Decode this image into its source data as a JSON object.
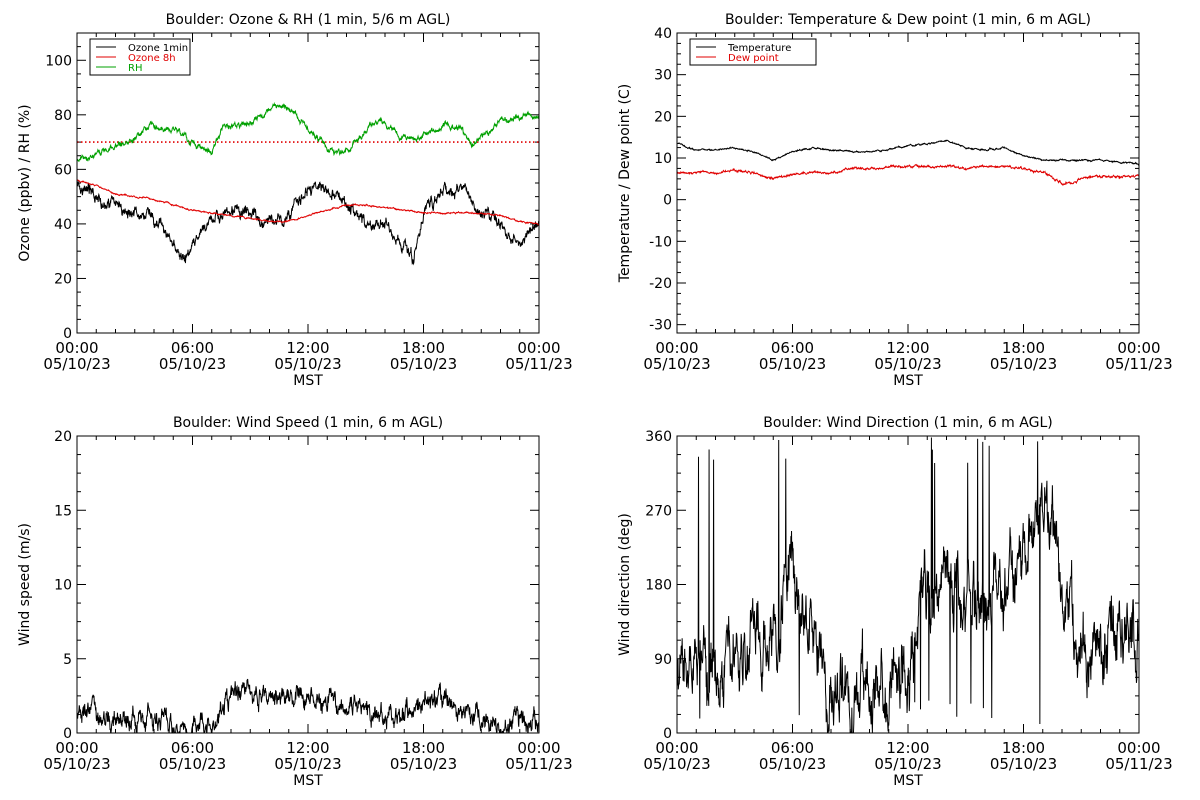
{
  "chart_data": [
    {
      "type": "line",
      "title": "Boulder: Ozone & RH (1 min, 5/6 m AGL)",
      "xlabel": "MST",
      "ylabel": "Ozone (ppbv) / RH (%)",
      "xlim_hours": [
        0,
        24
      ],
      "ylim": [
        0,
        110
      ],
      "yticks": [
        0,
        20,
        40,
        60,
        80,
        100
      ],
      "xtick_hours": [
        0,
        6,
        12,
        18,
        24
      ],
      "xtick_labels": [
        [
          "00:00",
          "05/10/23"
        ],
        [
          "06:00",
          "05/10/23"
        ],
        [
          "12:00",
          "05/10/23"
        ],
        [
          "18:00",
          "05/10/23"
        ],
        [
          "00:00",
          "05/11/23"
        ]
      ],
      "legend_position": "top-left",
      "reference_line": {
        "value": 70,
        "color": "#e00000",
        "style": "dotted"
      },
      "series": [
        {
          "name": "Ozone 1min",
          "color": "#000000",
          "noise": 2.5,
          "x": [
            0,
            1,
            2,
            3,
            4,
            5,
            5.5,
            6,
            6.5,
            7,
            8,
            9,
            10,
            11,
            12,
            13,
            14,
            15,
            16,
            17,
            17.5,
            18,
            19,
            20,
            21,
            22,
            23,
            24
          ],
          "y": [
            56,
            50,
            46,
            45,
            42,
            32,
            26,
            30,
            37,
            42,
            44,
            44,
            40,
            44,
            52,
            52,
            48,
            40,
            40,
            32,
            27,
            45,
            53,
            52,
            45,
            38,
            33,
            39
          ]
        },
        {
          "name": "Ozone 8h",
          "color": "#e00000",
          "noise": 0.3,
          "x": [
            0,
            1,
            2,
            3,
            4,
            5,
            6,
            7,
            8,
            9,
            10,
            11,
            12,
            13,
            14,
            15,
            16,
            17,
            18,
            19,
            20,
            21,
            22,
            23,
            24
          ],
          "y": [
            56,
            54,
            51,
            50,
            49,
            47,
            45,
            44,
            43,
            42,
            41,
            41,
            43,
            45,
            47,
            47,
            46,
            45,
            44,
            44,
            44,
            44,
            43,
            41,
            40
          ]
        },
        {
          "name": "RH",
          "color": "#00a000",
          "noise": 1.2,
          "x": [
            0,
            1,
            2,
            3,
            4,
            5,
            6,
            7,
            7.5,
            8,
            9,
            10,
            10.5,
            11,
            12,
            13,
            13.5,
            14,
            15,
            15.5,
            16,
            17,
            17.5,
            18,
            19,
            20,
            20.5,
            21,
            22,
            23,
            24
          ],
          "y": [
            63,
            65,
            68,
            72,
            76,
            75,
            70,
            66,
            75,
            76,
            77,
            82,
            84,
            82,
            75,
            68,
            66,
            67,
            74,
            78,
            76,
            72,
            70,
            72,
            76,
            75,
            68,
            72,
            78,
            79,
            80
          ]
        }
      ]
    },
    {
      "type": "line",
      "title": "Boulder: Temperature & Dew point (1 min, 6 m AGL)",
      "xlabel": "MST",
      "ylabel": "Temperature / Dew point (C)",
      "xlim_hours": [
        0,
        24
      ],
      "ylim": [
        -32,
        40
      ],
      "yticks": [
        -30,
        -20,
        -10,
        0,
        10,
        20,
        30,
        40
      ],
      "xtick_hours": [
        0,
        6,
        12,
        18,
        24
      ],
      "xtick_labels": [
        [
          "00:00",
          "05/10/23"
        ],
        [
          "06:00",
          "05/10/23"
        ],
        [
          "12:00",
          "05/10/23"
        ],
        [
          "18:00",
          "05/10/23"
        ],
        [
          "00:00",
          "05/11/23"
        ]
      ],
      "legend_position": "top-left",
      "series": [
        {
          "name": "Temperature",
          "color": "#000000",
          "noise": 0.2,
          "x": [
            0,
            1,
            2,
            3,
            4,
            5,
            6,
            7,
            8,
            9,
            10,
            11,
            12,
            13,
            14,
            15,
            16,
            17,
            18,
            19,
            20,
            21,
            22,
            23,
            24
          ],
          "y": [
            13.5,
            12,
            12,
            12.5,
            11.5,
            9.5,
            11.5,
            12.5,
            12,
            11.5,
            11.5,
            12,
            13,
            13.5,
            14,
            12.5,
            12,
            12.5,
            10.5,
            9.5,
            9.5,
            9.5,
            9.5,
            9,
            8.5
          ]
        },
        {
          "name": "Dew point",
          "color": "#e00000",
          "noise": 0.3,
          "x": [
            0,
            1,
            2,
            3,
            4,
            5,
            6,
            7,
            8,
            9,
            10,
            11,
            12,
            13,
            14,
            15,
            16,
            17,
            18,
            19,
            20,
            20.5,
            21,
            22,
            23,
            24
          ],
          "y": [
            6.5,
            6.5,
            6.5,
            7,
            6.5,
            5,
            6,
            6.5,
            6.5,
            7.5,
            7.5,
            8,
            8,
            8,
            8,
            7.5,
            8,
            8,
            7.5,
            6.5,
            4,
            4,
            5,
            5.5,
            5.5,
            5.5
          ]
        }
      ]
    },
    {
      "type": "line",
      "title": "Boulder: Wind Speed (1 min, 6 m AGL)",
      "xlabel": "MST",
      "ylabel": "Wind speed (m/s)",
      "xlim_hours": [
        0,
        24
      ],
      "ylim": [
        0,
        20
      ],
      "yticks": [
        0,
        5,
        10,
        15,
        20
      ],
      "xtick_hours": [
        0,
        6,
        12,
        18,
        24
      ],
      "xtick_labels": [
        [
          "00:00",
          "05/10/23"
        ],
        [
          "06:00",
          "05/10/23"
        ],
        [
          "12:00",
          "05/10/23"
        ],
        [
          "18:00",
          "05/10/23"
        ],
        [
          "00:00",
          "05/11/23"
        ]
      ],
      "series": [
        {
          "name": "",
          "color": "#000000",
          "noise": 0.8,
          "x": [
            0,
            1,
            2,
            3,
            4,
            5,
            6,
            7,
            8,
            9,
            10,
            11,
            12,
            13,
            14,
            15,
            16,
            17,
            18,
            19,
            20,
            21,
            22,
            23,
            24
          ],
          "y": [
            1.3,
            1,
            0.8,
            0.9,
            1.1,
            0.6,
            0.5,
            0.5,
            2.3,
            2.5,
            2.2,
            2.3,
            2,
            2.2,
            1.8,
            1.5,
            1,
            1.5,
            2,
            2.2,
            1.6,
            0.8,
            0.5,
            1,
            1.2
          ]
        }
      ]
    },
    {
      "type": "line",
      "title": "Boulder: Wind Direction (1 min, 6 m AGL)",
      "xlabel": "MST",
      "ylabel": "Wind direction (deg)",
      "xlim_hours": [
        0,
        24
      ],
      "ylim": [
        0,
        360
      ],
      "yticks": [
        0,
        90,
        180,
        270,
        360
      ],
      "xtick_hours": [
        0,
        6,
        12,
        18,
        24
      ],
      "xtick_labels": [
        [
          "00:00",
          "05/10/23"
        ],
        [
          "06:00",
          "05/10/23"
        ],
        [
          "12:00",
          "05/10/23"
        ],
        [
          "18:00",
          "05/10/23"
        ],
        [
          "00:00",
          "05/11/23"
        ]
      ],
      "series": [
        {
          "name": "",
          "color": "#000000",
          "noise": 45,
          "x": [
            0,
            1,
            2,
            3,
            4,
            5,
            5.5,
            6,
            6.5,
            7,
            7.5,
            8,
            9,
            10,
            11,
            12,
            12.5,
            13,
            14,
            15,
            16,
            17,
            18,
            19,
            20,
            21,
            22,
            23,
            24
          ],
          "y": [
            60,
            100,
            70,
            110,
            120,
            110,
            180,
            200,
            170,
            150,
            80,
            50,
            40,
            45,
            50,
            60,
            140,
            160,
            150,
            170,
            160,
            180,
            210,
            300,
            160,
            110,
            100,
            140,
            150
          ]
        }
      ]
    }
  ]
}
